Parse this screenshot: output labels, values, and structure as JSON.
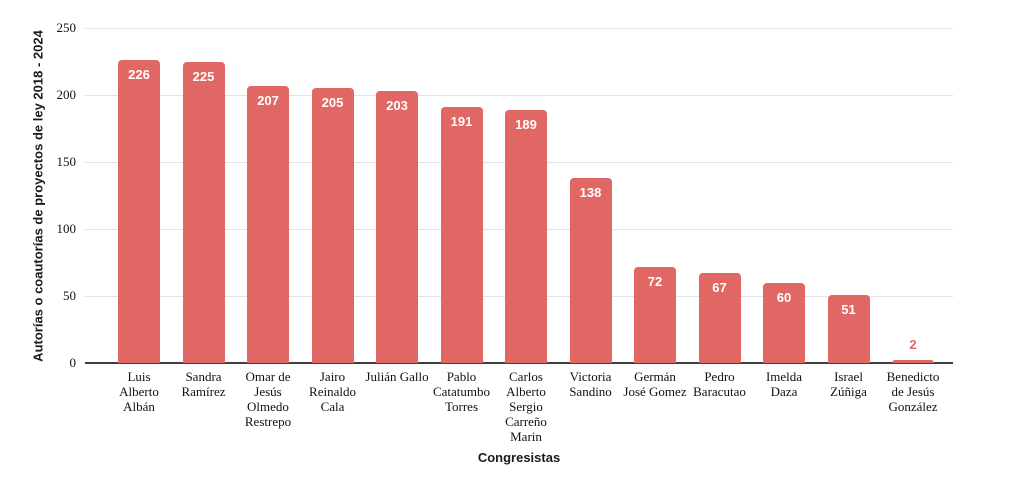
{
  "chart_data": {
    "type": "bar",
    "title": "",
    "xlabel": "Congresistas",
    "ylabel": "Autorías o coautorías de proyectos de ley 2018 - 2024",
    "categories": [
      "Luis Alberto Albán",
      "Sandra Ramírez",
      "Omar de Jesús Olmedo Restrepo",
      "Jairo Reinaldo Cala",
      "Julián Gallo",
      "Pablo Catatumbo Torres",
      "Carlos Alberto Sergio Carreño Marin",
      "Victoria Sandino",
      "Germán José Gomez",
      "Pedro Baracutao",
      "Imelda Daza",
      "Israel Zúñiga",
      "Benedicto de Jesús González"
    ],
    "values": [
      226,
      225,
      207,
      205,
      203,
      191,
      189,
      138,
      72,
      67,
      60,
      51,
      2
    ],
    "ylim": [
      0,
      250
    ],
    "yticks": [
      0,
      50,
      100,
      150,
      200,
      250
    ],
    "grid": true,
    "legend": "none",
    "colors": {
      "bar": "#e06763",
      "label_inside": "#ffffff",
      "label_outside": "#e06763",
      "gridline": "#e3e3e3",
      "axis_line": "#3f3f3f",
      "text": "#1a1a1a"
    }
  }
}
